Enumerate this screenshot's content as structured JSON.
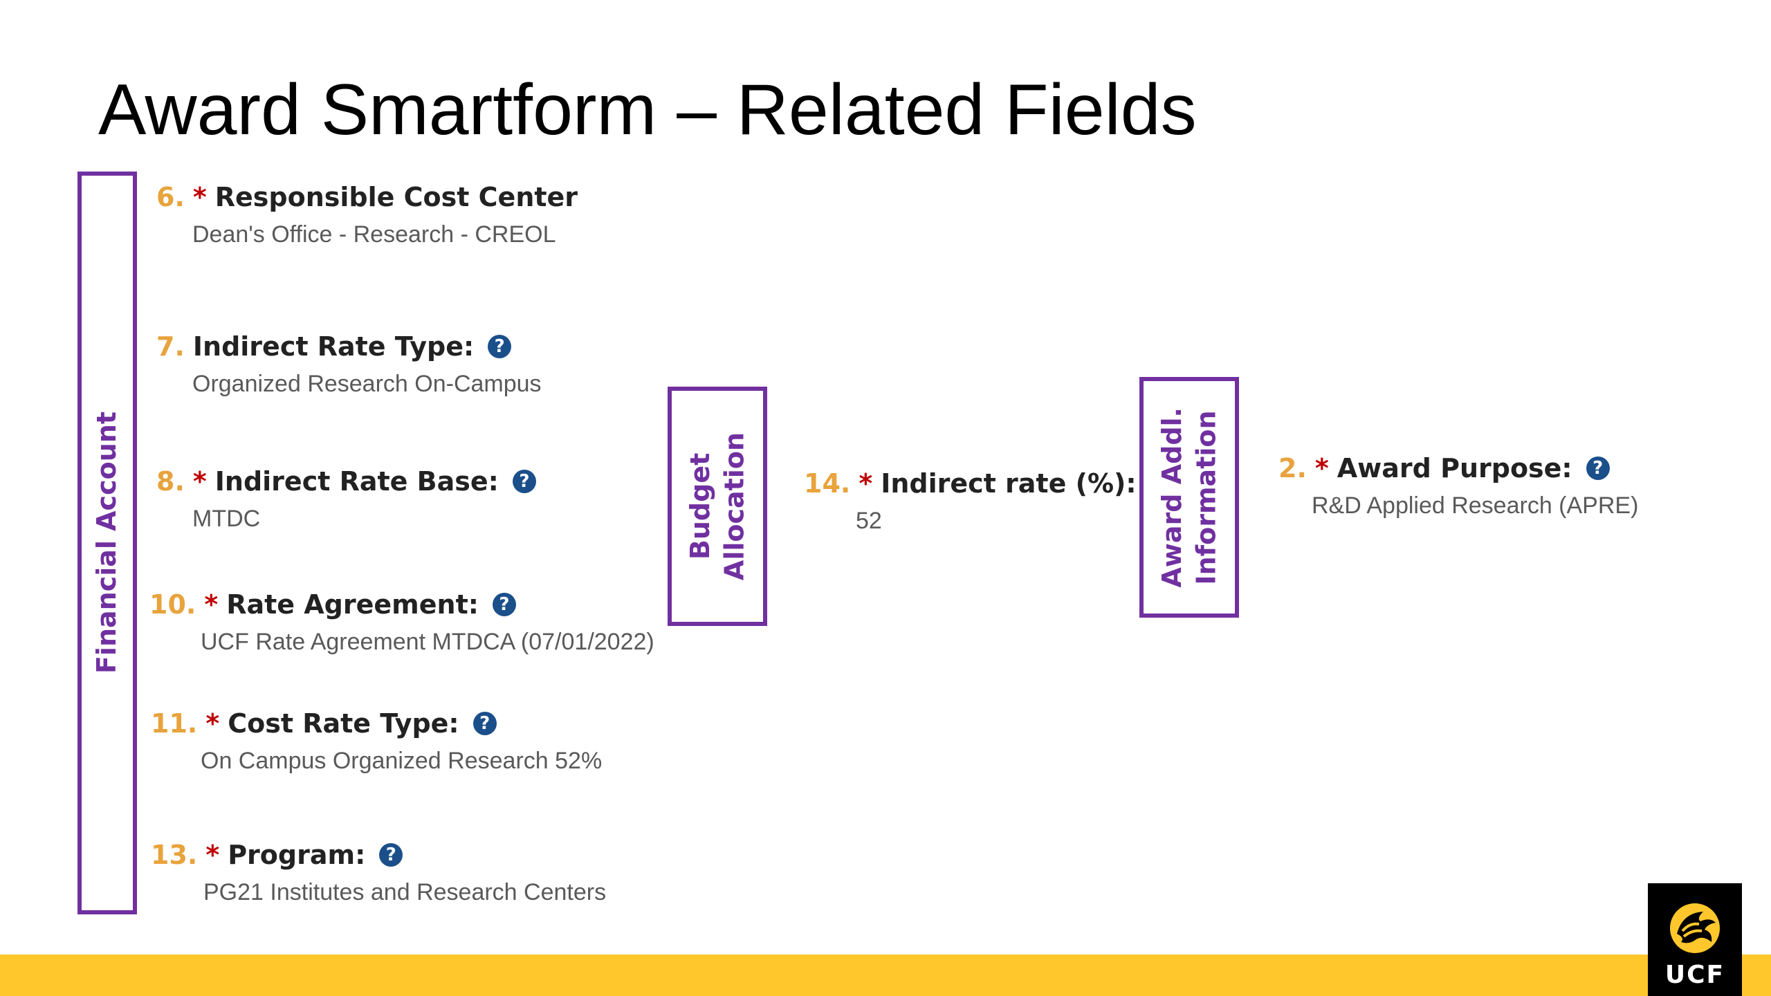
{
  "slide": {
    "title": "Award Smartform – Related Fields"
  },
  "sections": {
    "financial_account": "Financial Account",
    "budget_allocation": "Budget\nAllocation",
    "award_addl_information": "Award Addl.\nInformation"
  },
  "fields": {
    "responsible_cost_center": {
      "number": "6.",
      "required": "*",
      "label": "Responsible Cost Center",
      "value": "Dean's Office - Research - CREOL"
    },
    "indirect_rate_type": {
      "number": "7.",
      "label": "Indirect Rate Type:",
      "value": "Organized Research On-Campus"
    },
    "indirect_rate_base": {
      "number": "8.",
      "required": "*",
      "label": "Indirect Rate Base:",
      "value": "MTDC"
    },
    "rate_agreement": {
      "number": "10.",
      "required": "*",
      "label": "Rate Agreement:",
      "value": "UCF Rate Agreement MTDCA (07/01/2022)"
    },
    "cost_rate_type": {
      "number": "11.",
      "required": "*",
      "label": "Cost Rate Type:",
      "value": "On Campus Organized Research 52%"
    },
    "program": {
      "number": "13.",
      "required": "*",
      "label": "Program:",
      "value": "PG21 Institutes and Research Centers"
    },
    "indirect_rate_percent": {
      "number": "14.",
      "required": "*",
      "label": "Indirect rate (%):",
      "value": "52"
    },
    "award_purpose": {
      "number": "2.",
      "required": "*",
      "label": "Award Purpose:",
      "value": "R&D Applied Research (APRE)"
    }
  },
  "help_glyph": "?",
  "logo": {
    "text": "UCF",
    "icon": "pegasus-logo-icon"
  },
  "colors": {
    "section_border": "#7030a0",
    "field_number": "#e8a33c",
    "required_mark": "#c00000",
    "help_icon": "#1a4f8a",
    "footer_bar": "#ffc72c"
  }
}
